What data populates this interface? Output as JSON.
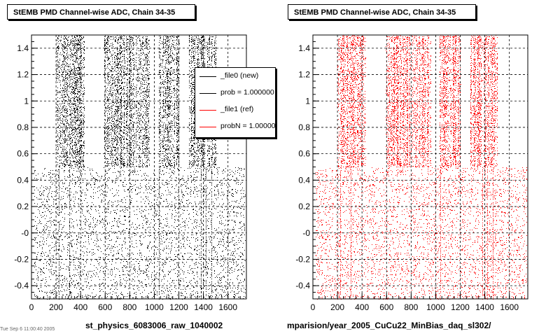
{
  "footer_text": "Tue Sep  6 11:00:40 2005",
  "legend": {
    "items": [
      {
        "label": "_file0 (new)",
        "color": "#000000"
      },
      {
        "label": "prob = 1.000000",
        "color": "#000000"
      },
      {
        "label": "_file1 (ref)",
        "color": "#ff0000"
      },
      {
        "label": "probN = 1.000000",
        "color": "#ff0000"
      }
    ]
  },
  "chart_data": [
    {
      "type": "scatter",
      "title": "StEMB PMD Channel-wise ADC, Chain 34-35",
      "xlabel": "st_physics_6083006_raw_1040002",
      "ylabel": "",
      "xlim": [
        0,
        1750
      ],
      "ylim": [
        -0.5,
        1.5
      ],
      "xticks": [
        "0",
        "200",
        "400",
        "600",
        "800",
        "1000",
        "1200",
        "1400",
        "1600"
      ],
      "yticks": [
        "-0.4",
        "-0.2",
        "-0",
        "0.2",
        "0.4",
        "0.6",
        "0.8",
        "1",
        "1.2",
        "1.4"
      ],
      "grid": true,
      "marker_color": "#000000",
      "dense_bands_x": [
        [
          200,
          430
        ],
        [
          590,
          960
        ],
        [
          1030,
          1200
        ],
        [
          1280,
          1500
        ]
      ],
      "dense_y_range": [
        0.5,
        1.5
      ],
      "sparse_y_range": [
        -0.5,
        0.5
      ]
    },
    {
      "type": "scatter",
      "title": "StEMB PMD Channel-wise ADC, Chain 34-35",
      "xlabel": "mparision/year_2005_CuCu22_MinBias_daq_sl302/",
      "ylabel": "",
      "xlim": [
        0,
        1750
      ],
      "ylim": [
        -0.5,
        1.5
      ],
      "xticks": [
        "0",
        "200",
        "400",
        "600",
        "800",
        "1000",
        "1200",
        "1400",
        "1600"
      ],
      "yticks": [
        "-0.4",
        "-0.2",
        "-0",
        "0.2",
        "0.4",
        "0.6",
        "0.8",
        "1",
        "1.2",
        "1.4"
      ],
      "grid": true,
      "marker_color": "#ff0000",
      "dense_bands_x": [
        [
          200,
          430
        ],
        [
          590,
          960
        ],
        [
          1030,
          1200
        ],
        [
          1280,
          1500
        ]
      ],
      "dense_y_range": [
        0.5,
        1.5
      ],
      "sparse_y_range": [
        -0.5,
        0.5
      ]
    }
  ]
}
